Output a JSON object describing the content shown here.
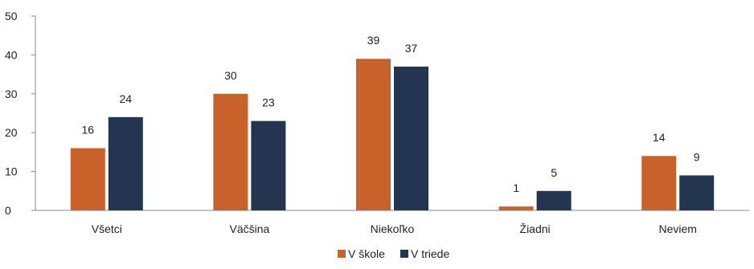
{
  "chart_data": {
    "type": "bar",
    "categories": [
      "Všetci",
      "Väčšina",
      "Niekoľko",
      "Žiadni",
      "Neviem"
    ],
    "series": [
      {
        "name": "V škole",
        "values": [
          16,
          30,
          39,
          1,
          14
        ],
        "color": "#C8622A"
      },
      {
        "name": "V triede",
        "values": [
          24,
          23,
          37,
          5,
          9
        ],
        "color": "#233550"
      }
    ],
    "ylim": [
      0,
      50
    ],
    "yticks": [
      0,
      10,
      20,
      30,
      40,
      50
    ],
    "grid": false,
    "legend": "bottom-center",
    "title": "",
    "xlabel": "",
    "ylabel": ""
  }
}
